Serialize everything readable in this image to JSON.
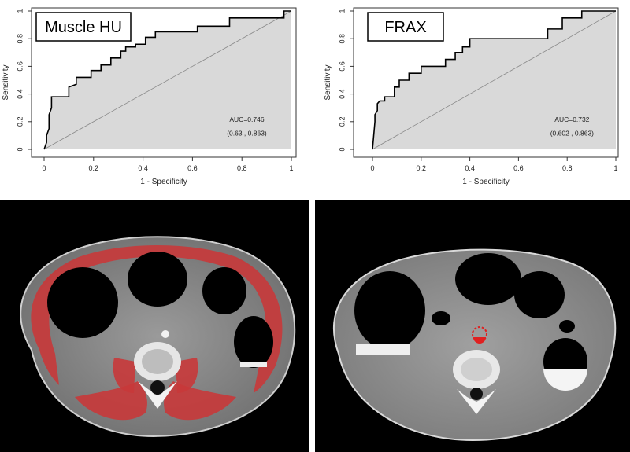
{
  "chart_data": [
    {
      "type": "line",
      "variant": "roc",
      "title": "Muscle HU",
      "xlabel": "1 - Specificity",
      "ylabel": "Sensitivity",
      "xlim": [
        0,
        1
      ],
      "ylim": [
        0,
        1
      ],
      "xticks": [
        "0",
        "0.2",
        "0.4",
        "0.6",
        "0.8",
        "1"
      ],
      "yticks": [
        "0",
        "0.2",
        "0.4",
        "0.6",
        "0.8",
        "1"
      ],
      "grid": false,
      "fill_under_curve": "#d9d9d9",
      "reference_diagonal": true,
      "auc_label": "AUC=0.746",
      "ci_label": "(0.63 , 0.863)",
      "x": [
        0,
        0.01,
        0.01,
        0.02,
        0.02,
        0.03,
        0.03,
        0.1,
        0.1,
        0.13,
        0.13,
        0.19,
        0.19,
        0.23,
        0.23,
        0.27,
        0.27,
        0.31,
        0.31,
        0.33,
        0.33,
        0.37,
        0.37,
        0.41,
        0.41,
        0.45,
        0.45,
        0.62,
        0.62,
        0.75,
        0.75,
        0.97,
        0.97,
        1.0
      ],
      "y": [
        0,
        0.05,
        0.1,
        0.15,
        0.25,
        0.3,
        0.38,
        0.38,
        0.45,
        0.47,
        0.52,
        0.52,
        0.57,
        0.57,
        0.61,
        0.61,
        0.66,
        0.66,
        0.71,
        0.71,
        0.74,
        0.74,
        0.76,
        0.76,
        0.81,
        0.81,
        0.85,
        0.85,
        0.89,
        0.89,
        0.95,
        0.95,
        1.0,
        1.0
      ]
    },
    {
      "type": "line",
      "variant": "roc",
      "title": "FRAX",
      "xlabel": "1 - Specificity",
      "ylabel": "Sensitivity",
      "xlim": [
        0,
        1
      ],
      "ylim": [
        0,
        1
      ],
      "xticks": [
        "0",
        "0.2",
        "0.4",
        "0.6",
        "0.8",
        "1"
      ],
      "yticks": [
        "0",
        "0.2",
        "0.4",
        "0.6",
        "0.8",
        "1"
      ],
      "grid": false,
      "fill_under_curve": "#d9d9d9",
      "reference_diagonal": true,
      "auc_label": "AUC=0.732",
      "ci_label": "(0.602 , 0.863)",
      "x": [
        0,
        0.005,
        0.01,
        0.01,
        0.02,
        0.02,
        0.03,
        0.05,
        0.05,
        0.09,
        0.09,
        0.11,
        0.11,
        0.15,
        0.15,
        0.2,
        0.2,
        0.3,
        0.3,
        0.34,
        0.34,
        0.37,
        0.37,
        0.4,
        0.4,
        0.72,
        0.72,
        0.78,
        0.78,
        0.86,
        0.86,
        1.0
      ],
      "y": [
        0,
        0.1,
        0.2,
        0.25,
        0.28,
        0.33,
        0.35,
        0.35,
        0.38,
        0.38,
        0.45,
        0.45,
        0.5,
        0.5,
        0.55,
        0.55,
        0.6,
        0.6,
        0.65,
        0.65,
        0.7,
        0.7,
        0.74,
        0.74,
        0.8,
        0.8,
        0.87,
        0.87,
        0.95,
        0.95,
        1.0,
        1.0
      ]
    }
  ]
}
